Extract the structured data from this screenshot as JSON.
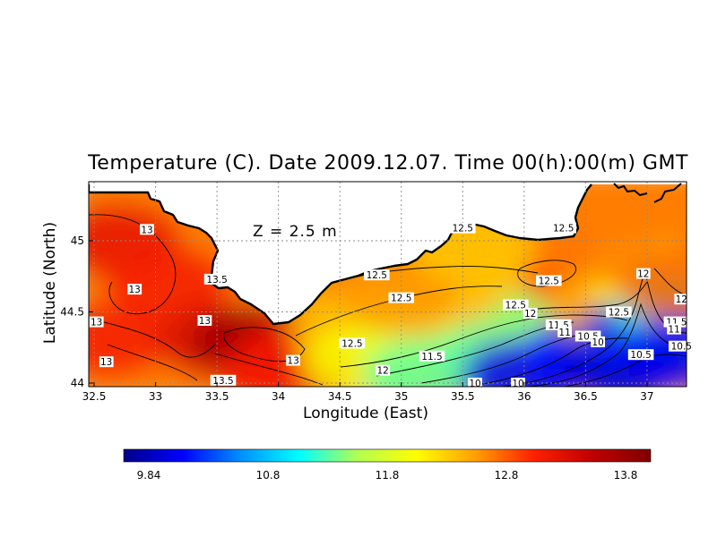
{
  "chart_data": {
    "type": "heatmap",
    "title": "Temperature (C). Date 2009.12.07. Time 00(h):00(m) GMT",
    "xlabel": "Longitude (East)",
    "ylabel": "Latitude (North)",
    "annotation": "Z = 2.5 m",
    "xlim": [
      32.5,
      37.3
    ],
    "ylim": [
      44.0,
      45.4
    ],
    "x_ticks": [
      "32.5",
      "33",
      "33.5",
      "34",
      "34.5",
      "35",
      "35.5",
      "36",
      "36.5",
      "37"
    ],
    "y_ticks": [
      "44",
      "44.5",
      "45"
    ],
    "grid": true,
    "colorbar": {
      "min": 9.84,
      "max": 13.8,
      "ticks": [
        "9.84",
        "10.8",
        "11.8",
        "12.8",
        "13.8"
      ],
      "colors": [
        "#00008a",
        "#0000ff",
        "#0090ff",
        "#00ffff",
        "#b4ff50",
        "#ffff00",
        "#ffa000",
        "#ff2000",
        "#c00000",
        "#800000"
      ]
    },
    "temperature_samples": [
      {
        "lon": 32.7,
        "lat": 45.0,
        "t": 13.1
      },
      {
        "lon": 33.1,
        "lat": 44.7,
        "t": 13.0
      },
      {
        "lon": 32.6,
        "lat": 44.3,
        "t": 13.0
      },
      {
        "lon": 33.5,
        "lat": 44.3,
        "t": 13.2
      },
      {
        "lon": 33.8,
        "lat": 44.28,
        "t": 13.6
      },
      {
        "lon": 34.2,
        "lat": 44.2,
        "t": 13.1
      },
      {
        "lon": 34.0,
        "lat": 44.05,
        "t": 13.0
      },
      {
        "lon": 34.6,
        "lat": 44.4,
        "t": 12.3
      },
      {
        "lon": 34.7,
        "lat": 44.15,
        "t": 12.0
      },
      {
        "lon": 35.1,
        "lat": 44.3,
        "t": 11.9
      },
      {
        "lon": 35.2,
        "lat": 44.05,
        "t": 11.4
      },
      {
        "lon": 35.0,
        "lat": 44.6,
        "t": 12.5
      },
      {
        "lon": 35.5,
        "lat": 44.8,
        "t": 12.5
      },
      {
        "lon": 35.9,
        "lat": 44.5,
        "t": 12.3
      },
      {
        "lon": 35.8,
        "lat": 44.2,
        "t": 11.4
      },
      {
        "lon": 36.2,
        "lat": 44.4,
        "t": 11.5
      },
      {
        "lon": 36.0,
        "lat": 44.05,
        "t": 10.2
      },
      {
        "lon": 36.5,
        "lat": 44.2,
        "t": 10.3
      },
      {
        "lon": 36.8,
        "lat": 44.1,
        "t": 10.1
      },
      {
        "lon": 36.5,
        "lat": 44.75,
        "t": 12.8
      },
      {
        "lon": 36.7,
        "lat": 44.55,
        "t": 12.4
      },
      {
        "lon": 36.98,
        "lat": 44.35,
        "t": 10.4
      },
      {
        "lon": 36.98,
        "lat": 44.75,
        "t": 12.0
      },
      {
        "lon": 37.25,
        "lat": 44.5,
        "t": 11.2
      },
      {
        "lon": 37.25,
        "lat": 44.7,
        "t": 12.7
      },
      {
        "lon": 37.25,
        "lat": 44.2,
        "t": 10.2
      },
      {
        "lon": 35.6,
        "lat": 44.95,
        "t": 12.3
      },
      {
        "lon": 36.6,
        "lat": 44.95,
        "t": 12.6
      }
    ],
    "contour_labels": [
      {
        "text": "13",
        "lon": 32.93,
        "lat": 45.08
      },
      {
        "text": "13",
        "lon": 32.83,
        "lat": 44.66
      },
      {
        "text": "13",
        "lon": 32.52,
        "lat": 44.43
      },
      {
        "text": "13",
        "lon": 32.6,
        "lat": 44.15
      },
      {
        "text": "13",
        "lon": 33.4,
        "lat": 44.44
      },
      {
        "text": "13.5",
        "lon": 33.5,
        "lat": 44.73
      },
      {
        "text": "13",
        "lon": 34.12,
        "lat": 44.16
      },
      {
        "text": "13.5",
        "lon": 33.55,
        "lat": 44.02
      },
      {
        "text": "12.5",
        "lon": 34.6,
        "lat": 44.28
      },
      {
        "text": "12.5",
        "lon": 34.8,
        "lat": 44.76
      },
      {
        "text": "12.5",
        "lon": 35.0,
        "lat": 44.6
      },
      {
        "text": "12",
        "lon": 34.85,
        "lat": 44.09
      },
      {
        "text": "11.5",
        "lon": 35.25,
        "lat": 44.19
      },
      {
        "text": "10",
        "lon": 35.6,
        "lat": 44.0
      },
      {
        "text": "10",
        "lon": 35.95,
        "lat": 44.0
      },
      {
        "text": "12.5",
        "lon": 35.5,
        "lat": 45.09
      },
      {
        "text": "12.5",
        "lon": 36.32,
        "lat": 45.09
      },
      {
        "text": "12.5",
        "lon": 36.2,
        "lat": 44.72
      },
      {
        "text": "12.5",
        "lon": 35.93,
        "lat": 44.55
      },
      {
        "text": "12",
        "lon": 36.05,
        "lat": 44.49
      },
      {
        "text": "11.5",
        "lon": 36.28,
        "lat": 44.41
      },
      {
        "text": "11",
        "lon": 36.33,
        "lat": 44.36
      },
      {
        "text": "10.5",
        "lon": 36.52,
        "lat": 44.33
      },
      {
        "text": "10",
        "lon": 36.6,
        "lat": 44.29
      },
      {
        "text": "12.5",
        "lon": 36.77,
        "lat": 44.5
      },
      {
        "text": "12",
        "lon": 36.97,
        "lat": 44.77
      },
      {
        "text": "11.5",
        "lon": 37.24,
        "lat": 44.43
      },
      {
        "text": "11",
        "lon": 37.22,
        "lat": 44.38
      },
      {
        "text": "10.5",
        "lon": 37.28,
        "lat": 44.26
      },
      {
        "text": "10.5",
        "lon": 36.95,
        "lat": 44.2
      },
      {
        "text": "12",
        "lon": 37.28,
        "lat": 44.59
      }
    ]
  }
}
